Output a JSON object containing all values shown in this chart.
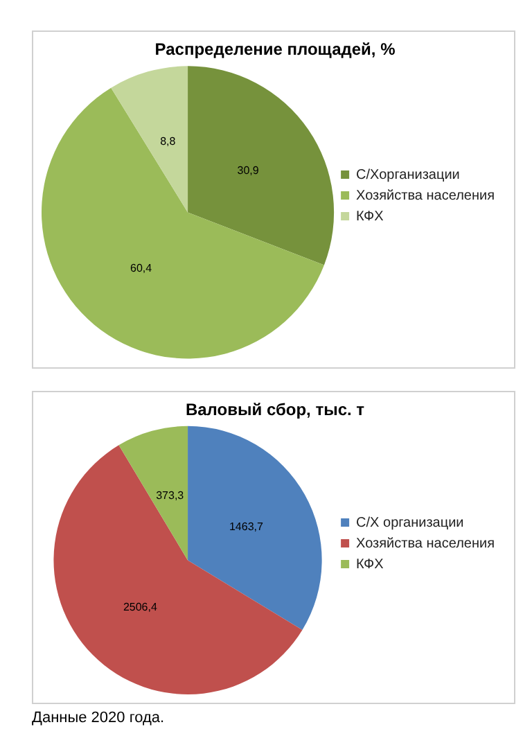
{
  "chart_data": [
    {
      "type": "pie",
      "title": "Распределение площадей, %",
      "categories": [
        "С/Хорганизации",
        "Хозяйства населения",
        "КФХ"
      ],
      "values": [
        30.9,
        60.4,
        8.8
      ],
      "colors": [
        "#76923c",
        "#9bbb59",
        "#c4d79b"
      ],
      "value_labels": [
        "30,9",
        "60,4",
        "8,8"
      ],
      "legend": "right"
    },
    {
      "type": "pie",
      "title": "Валовый сбор, тыс. т",
      "categories": [
        "С/Х организации",
        "Хозяйства населения",
        "КФХ"
      ],
      "values": [
        1463.7,
        2506.4,
        373.3
      ],
      "colors": [
        "#4f81bd",
        "#c0504d",
        "#9bbb59"
      ],
      "value_labels": [
        "1463,7",
        "2506,4",
        "373,3"
      ],
      "legend": "right",
      "annotations": [
        "Данные 2020 года."
      ]
    }
  ]
}
